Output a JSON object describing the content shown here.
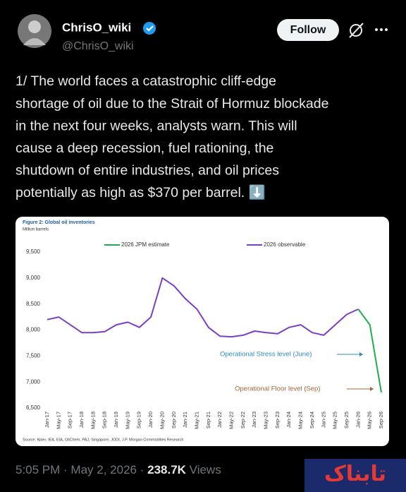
{
  "tweet": {
    "author_name": "ChrisO_wiki",
    "handle": "@ChrisO_wiki",
    "follow": "Follow",
    "lines": [
      "1/ The world faces a catastrophic cliff-edge",
      "shortage of oil due to the Strait of Hormuz blockade",
      "in the next four weeks, analysts warn. This will",
      "cause a deep recession, fuel rationing, the",
      "shutdown of entire industries, and oil prices",
      "potentially as high as $370 per barrel. ⬇️"
    ],
    "time_date": "5:05 PM · May 2, 2026 ·",
    "views_count": "238.7K",
    "views_label": "Views",
    "watermark": "تابناک"
  },
  "chart_data": {
    "type": "line",
    "title": "Figure 2: Global oil inventories",
    "y_label": "Million barrels",
    "categories": [
      "Jan-17",
      "May-17",
      "Sep-17",
      "Jan-18",
      "May-18",
      "Sep-18",
      "Jan-19",
      "May-19",
      "Sep-19",
      "Jan-20",
      "May-20",
      "Sep-20",
      "Jan-21",
      "May-21",
      "Sep-21",
      "Jan-22",
      "May-22",
      "Sep-22",
      "Jan-23",
      "May-23",
      "Sep-23",
      "Jan-24",
      "May-24",
      "Sep-24",
      "Jan-25",
      "May-25",
      "Sep-25",
      "Jan-26",
      "May-26",
      "Sep-26"
    ],
    "series": [
      {
        "name": "2026 observable",
        "color": "#7b3fc4",
        "values": [
          8200,
          8250,
          8100,
          7950,
          7950,
          7970,
          8100,
          8150,
          8050,
          8250,
          9000,
          8850,
          8600,
          8400,
          8050,
          7880,
          7870,
          7900,
          7980,
          7950,
          7930,
          8050,
          8100,
          7950,
          7900,
          8100,
          8300,
          8400,
          null,
          null
        ]
      },
      {
        "name": "2026 JPM estimate",
        "color": "#1fae4b",
        "values": [
          null,
          null,
          null,
          null,
          null,
          null,
          null,
          null,
          null,
          null,
          null,
          null,
          null,
          null,
          null,
          null,
          null,
          null,
          null,
          null,
          null,
          null,
          null,
          null,
          null,
          null,
          null,
          8400,
          8100,
          6800
        ]
      }
    ],
    "ylim": [
      6500,
      9500
    ],
    "yticks": [
      {
        "value": 6500,
        "label": "6,500"
      },
      {
        "value": 7000,
        "label": "7,000"
      },
      {
        "value": 7500,
        "label": "7,500"
      },
      {
        "value": 8000,
        "label": "8,000"
      },
      {
        "value": 8500,
        "label": "8,500"
      },
      {
        "value": 9000,
        "label": "9,000"
      },
      {
        "value": 9500,
        "label": "9,500"
      }
    ],
    "grid": false,
    "annotations": [
      {
        "text": "Operational Stress level (June)",
        "color": "#2e8bc0"
      },
      {
        "text": "Operational Floor level (Sep)",
        "color": "#a0643a"
      }
    ],
    "source": "Source: Kpler, IEA, EIA, OilChem, PAJ, Singapore, JODI, J.P. Morgan Commodities Research"
  }
}
